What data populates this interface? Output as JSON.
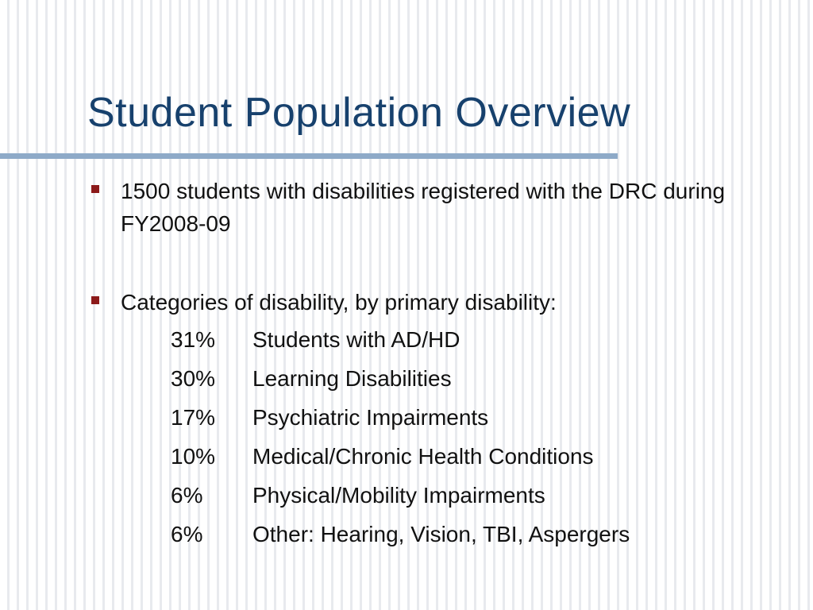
{
  "slide": {
    "title": "Student Population Overview",
    "bullets": [
      {
        "text": "1500 students with disabilities registered with the DRC during FY2008-09"
      },
      {
        "text": "Categories of disability, by primary disability:"
      }
    ],
    "categories": [
      {
        "percent": "31%",
        "label": "Students with AD/HD"
      },
      {
        "percent": "30%",
        "label": "Learning Disabilities"
      },
      {
        "percent": "17%",
        "label": "Psychiatric Impairments"
      },
      {
        "percent": "10%",
        "label": "Medical/Chronic Health Conditions"
      },
      {
        "percent": "6%",
        "label": "Physical/Mobility Impairments"
      },
      {
        "percent": "6%",
        "label": "Other: Hearing, Vision, TBI, Aspergers"
      }
    ]
  },
  "colors": {
    "title": "#17416d",
    "rule": "#8eaac8",
    "bullet": "#8c1a1a",
    "body_text": "#111111"
  }
}
